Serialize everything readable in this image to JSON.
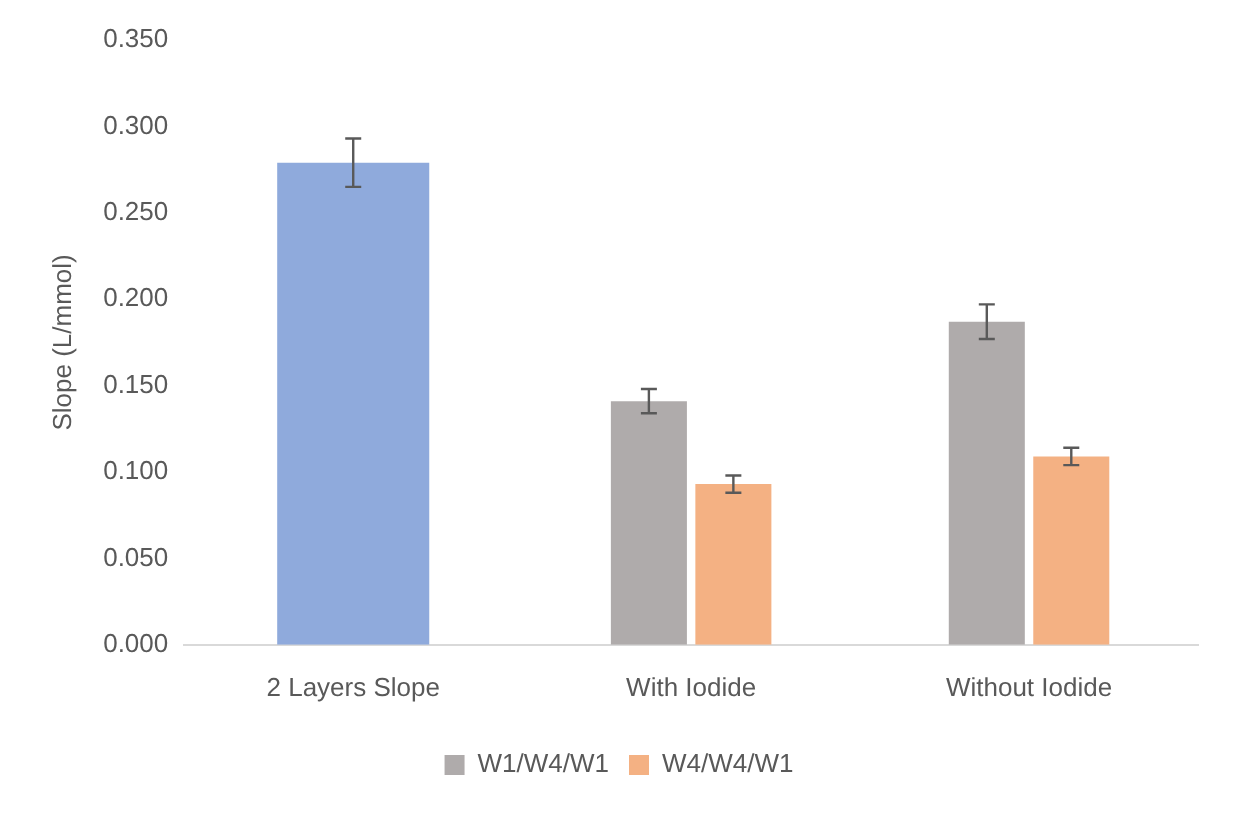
{
  "chart_data": {
    "type": "bar",
    "ylabel": "Slope (L/mmol)",
    "categories": [
      "2 Layers Slope",
      "With Iodide",
      "Without Iodide"
    ],
    "series": [
      {
        "color": "#8faadc",
        "values": [
          0.279,
          null,
          null
        ],
        "errors": [
          0.014,
          null,
          null
        ]
      },
      {
        "name": "W1/W4/W1",
        "color": "#afabab",
        "values": [
          null,
          0.141,
          0.187
        ],
        "errors": [
          null,
          0.007,
          0.01
        ]
      },
      {
        "name": "W4/W4/W1",
        "color": "#f4b183",
        "values": [
          null,
          0.093,
          0.109
        ],
        "errors": [
          null,
          0.005,
          0.005
        ]
      }
    ],
    "ylim": [
      0,
      0.35
    ],
    "yticks": [
      {
        "value": 0,
        "label": "0.000"
      },
      {
        "value": 0.05,
        "label": "0.050"
      },
      {
        "value": 0.1,
        "label": "0.100"
      },
      {
        "value": 0.15,
        "label": "0.150"
      },
      {
        "value": 0.2,
        "label": "0.200"
      },
      {
        "value": 0.25,
        "label": "0.250"
      },
      {
        "value": 0.3,
        "label": "0.300"
      },
      {
        "value": 0.35,
        "label": "0.350"
      }
    ],
    "grid": false,
    "legend": "bottom"
  }
}
